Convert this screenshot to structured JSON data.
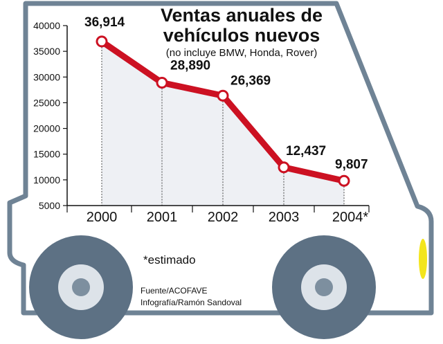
{
  "chart_data": {
    "type": "line",
    "title": "Ventas anuales de vehículos nuevos",
    "title_line1": "Ventas anuales de",
    "title_line2": "vehículos nuevos",
    "subtitle": "(no incluye BMW, Honda, Rover)",
    "categories": [
      "2000",
      "2001",
      "2002",
      "2003",
      "2004*"
    ],
    "values": [
      36914,
      28890,
      26369,
      12437,
      9807
    ],
    "value_labels": [
      "36,914",
      "28,890",
      "26,369",
      "12,437",
      "9,807"
    ],
    "ylim": [
      5000,
      40000
    ],
    "yticks": [
      5000,
      10000,
      15000,
      20000,
      25000,
      30000,
      35000,
      40000
    ],
    "ytick_labels": [
      "5000",
      "10000",
      "15000",
      "20000",
      "25000",
      "30000",
      "35000",
      "40000"
    ],
    "xlabel": "",
    "ylabel": ""
  },
  "note": "*estimado",
  "source": "Fuente/ACOFAVE",
  "credit": "Infografía/Ramón Sandoval",
  "colors": {
    "line": "#cc1122",
    "marker_fill": "#ffffff",
    "area": "#eef0f4",
    "car_outline": "#6f8395",
    "wheel": "#5d7184",
    "hubcap": "#dde3e9",
    "light": "#f3e51c"
  }
}
